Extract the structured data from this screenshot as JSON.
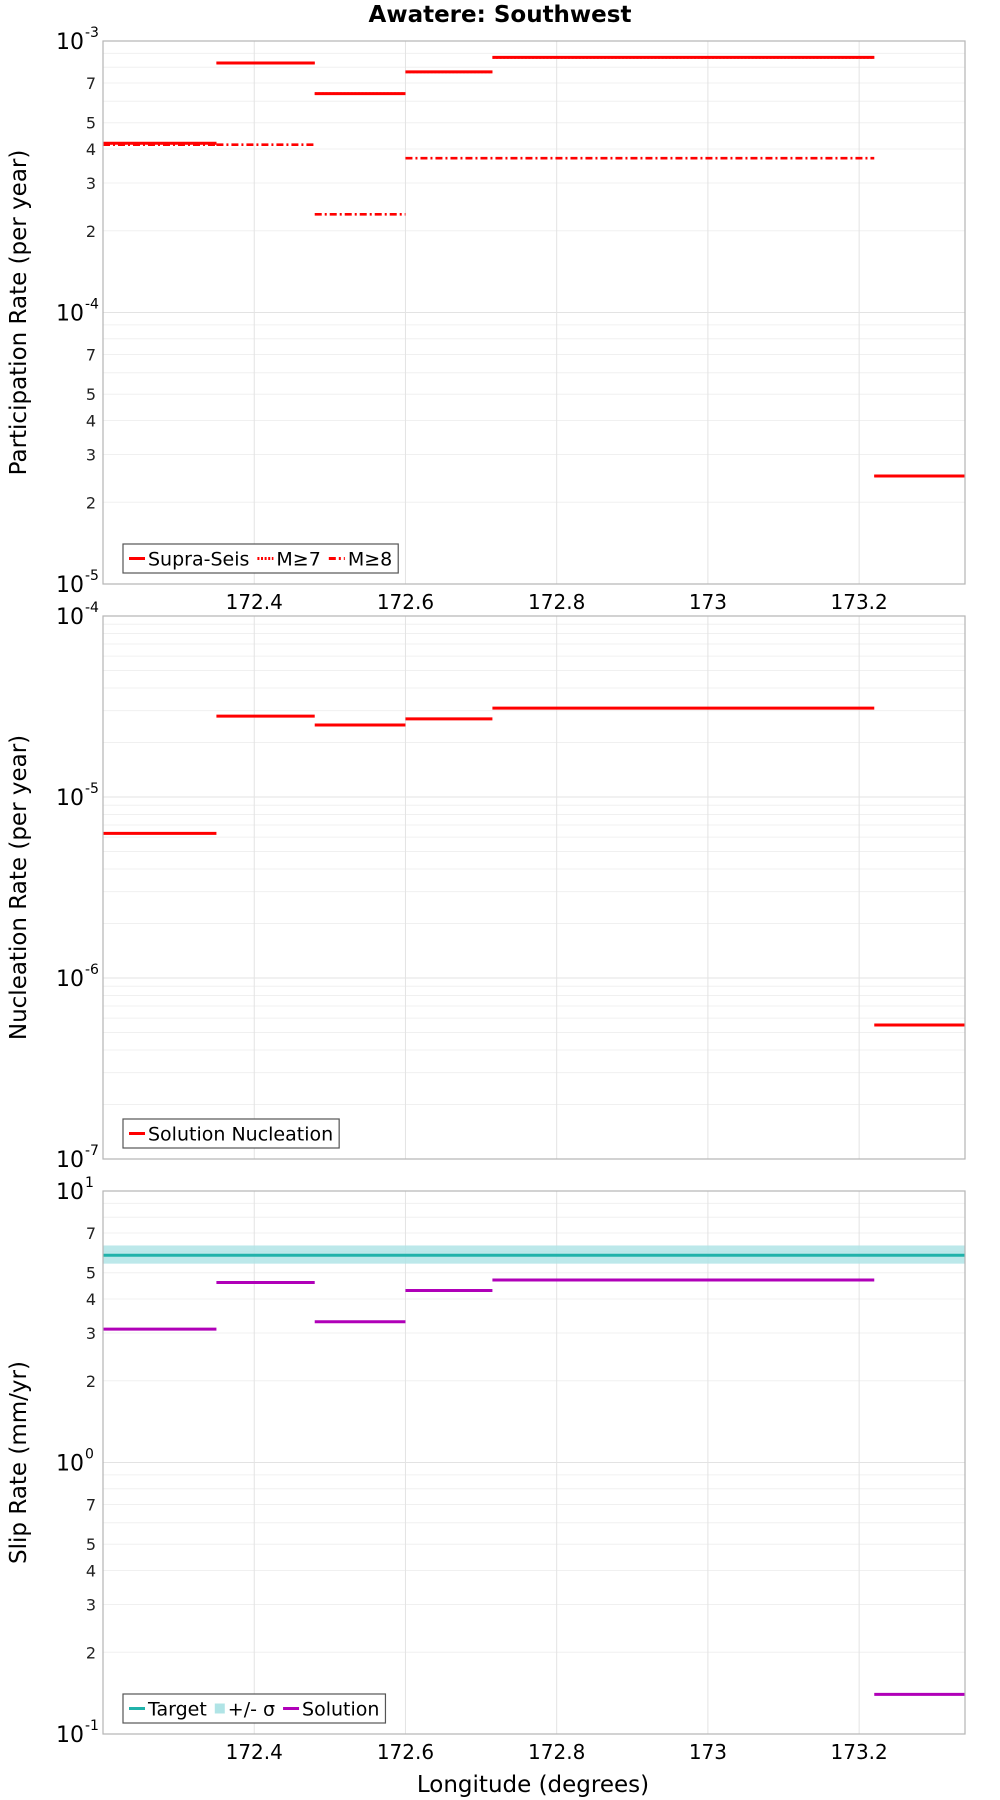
{
  "chart_data": [
    {
      "type": "line",
      "title": "Awatere: Southwest",
      "xlabel": "Longitude (degrees)",
      "ylabel": "Participation Rate (per year)",
      "yscale": "log",
      "xlim": [
        172.2,
        173.34
      ],
      "ylim": [
        1e-05,
        0.001
      ],
      "xticks": [
        "172.4",
        "172.6",
        "172.8",
        "173",
        "173.2"
      ],
      "yticks_major": [
        {
          "base": "10",
          "exp": "-3"
        },
        {
          "base": "10",
          "exp": "-4"
        },
        {
          "base": "10",
          "exp": "-5"
        }
      ],
      "yticks_minor": [
        "7",
        "5",
        "4",
        "3",
        "2"
      ],
      "legend": [
        "Supra-Seis",
        "M≥7",
        "M≥8"
      ],
      "series": [
        {
          "name": "Supra-Seis",
          "color": "#ff0000",
          "style": "solid",
          "segments": [
            {
              "x": [
                172.2,
                172.35
              ],
              "y": 0.00042
            },
            {
              "x": [
                172.35,
                172.48
              ],
              "y": 0.00083
            },
            {
              "x": [
                172.48,
                172.6
              ],
              "y": 0.00064
            },
            {
              "x": [
                172.6,
                172.715
              ],
              "y": 0.00077
            },
            {
              "x": [
                172.715,
                173.22
              ],
              "y": 0.00087
            },
            {
              "x": [
                173.22,
                173.34
              ],
              "y": 2.5e-05
            }
          ]
        },
        {
          "name": "M≥7",
          "color": "#ff0000",
          "style": "dotted",
          "segments": [
            {
              "x": [
                172.2,
                172.35
              ],
              "y": 0.00042
            },
            {
              "x": [
                172.35,
                172.48
              ],
              "y": 0.00083
            },
            {
              "x": [
                172.48,
                172.6
              ],
              "y": 0.00064
            },
            {
              "x": [
                172.6,
                172.715
              ],
              "y": 0.00077
            },
            {
              "x": [
                172.715,
                173.22
              ],
              "y": 0.00087
            },
            {
              "x": [
                173.22,
                173.34
              ],
              "y": 2.5e-05
            }
          ]
        },
        {
          "name": "M≥8",
          "color": "#ff0000",
          "style": "dashdot",
          "segments": [
            {
              "x": [
                172.2,
                172.35
              ],
              "y": 0.000415
            },
            {
              "x": [
                172.35,
                172.48
              ],
              "y": 0.000415
            },
            {
              "x": [
                172.48,
                172.6
              ],
              "y": 0.00023
            },
            {
              "x": [
                172.6,
                173.22
              ],
              "y": 0.00037
            }
          ]
        }
      ]
    },
    {
      "type": "line",
      "title": "",
      "xlabel": "",
      "ylabel": "Nucleation Rate (per year)",
      "yscale": "log",
      "xlim": [
        172.2,
        173.34
      ],
      "ylim": [
        1e-07,
        0.0001
      ],
      "yticks_major": [
        {
          "base": "10",
          "exp": "-4"
        },
        {
          "base": "10",
          "exp": "-5"
        },
        {
          "base": "10",
          "exp": "-6"
        },
        {
          "base": "10",
          "exp": "-7"
        }
      ],
      "legend": [
        "Solution Nucleation"
      ],
      "series": [
        {
          "name": "Solution Nucleation",
          "color": "#ff0000",
          "style": "solid",
          "segments": [
            {
              "x": [
                172.2,
                172.35
              ],
              "y": 6.3e-06
            },
            {
              "x": [
                172.35,
                172.48
              ],
              "y": 2.8e-05
            },
            {
              "x": [
                172.48,
                172.6
              ],
              "y": 2.5e-05
            },
            {
              "x": [
                172.6,
                172.715
              ],
              "y": 2.7e-05
            },
            {
              "x": [
                172.715,
                173.22
              ],
              "y": 3.1e-05
            },
            {
              "x": [
                173.22,
                173.34
              ],
              "y": 5.5e-07
            }
          ]
        }
      ]
    },
    {
      "type": "line",
      "title": "",
      "xlabel": "Longitude (degrees)",
      "ylabel": "Slip Rate (mm/yr)",
      "yscale": "log",
      "xlim": [
        172.2,
        173.34
      ],
      "ylim": [
        0.1,
        10
      ],
      "xticks": [
        "172.4",
        "172.6",
        "172.8",
        "173",
        "173.2"
      ],
      "yticks_major": [
        {
          "base": "10",
          "exp": "1"
        },
        {
          "base": "10",
          "exp": "0"
        },
        {
          "base": "10",
          "exp": "-1"
        }
      ],
      "yticks_minor": [
        "7",
        "5",
        "4",
        "3",
        "2"
      ],
      "legend": [
        "Target",
        "+/- σ",
        "Solution"
      ],
      "target": {
        "name": "Target",
        "color": "#20b2aa",
        "value": 5.8
      },
      "sigma_band": {
        "name": "+/- σ",
        "color": "#b0e4e6",
        "low": 5.4,
        "high": 6.3
      },
      "series": [
        {
          "name": "Solution",
          "color": "#b000b8",
          "style": "solid",
          "segments": [
            {
              "x": [
                172.2,
                172.35
              ],
              "y": 3.1
            },
            {
              "x": [
                172.35,
                172.48
              ],
              "y": 4.6
            },
            {
              "x": [
                172.48,
                172.6
              ],
              "y": 3.3
            },
            {
              "x": [
                172.6,
                172.715
              ],
              "y": 4.3
            },
            {
              "x": [
                172.715,
                173.22
              ],
              "y": 4.7
            },
            {
              "x": [
                173.22,
                173.34
              ],
              "y": 0.14
            }
          ]
        }
      ]
    }
  ]
}
